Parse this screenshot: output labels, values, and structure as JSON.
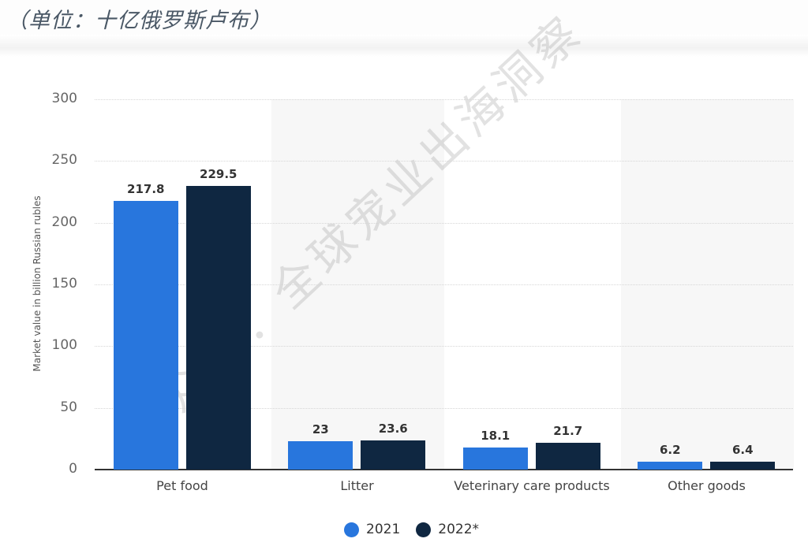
{
  "header": {
    "unit_title": "（单位：十亿俄罗斯卢布）"
  },
  "watermark": "公众号：全球宠业出海洞察",
  "colors": {
    "series_2021": "#2876dd",
    "series_2022": "#0f2741",
    "band": "#f7f7f7",
    "grid": "#d6d6d6"
  },
  "chart_data": {
    "type": "bar",
    "title": "",
    "subtitle": "（单位：十亿俄罗斯卢布）",
    "xlabel": "",
    "ylabel": "Market value in billion Russian rubles",
    "ylim": [
      0,
      300
    ],
    "yticks": [
      "0",
      "50",
      "100",
      "150",
      "200",
      "250",
      "300"
    ],
    "grid": true,
    "legend_position": "bottom",
    "categories": [
      "Pet food",
      "Litter",
      "Veterinary care products",
      "Other goods"
    ],
    "series": [
      {
        "name": "2021",
        "values": [
          217.8,
          23,
          18.1,
          6.2
        ],
        "labels": [
          "217.8",
          "23",
          "18.1",
          "6.2"
        ]
      },
      {
        "name": "2022*",
        "values": [
          229.5,
          23.6,
          21.7,
          6.4
        ],
        "labels": [
          "229.5",
          "23.6",
          "21.7",
          "6.4"
        ]
      }
    ]
  }
}
